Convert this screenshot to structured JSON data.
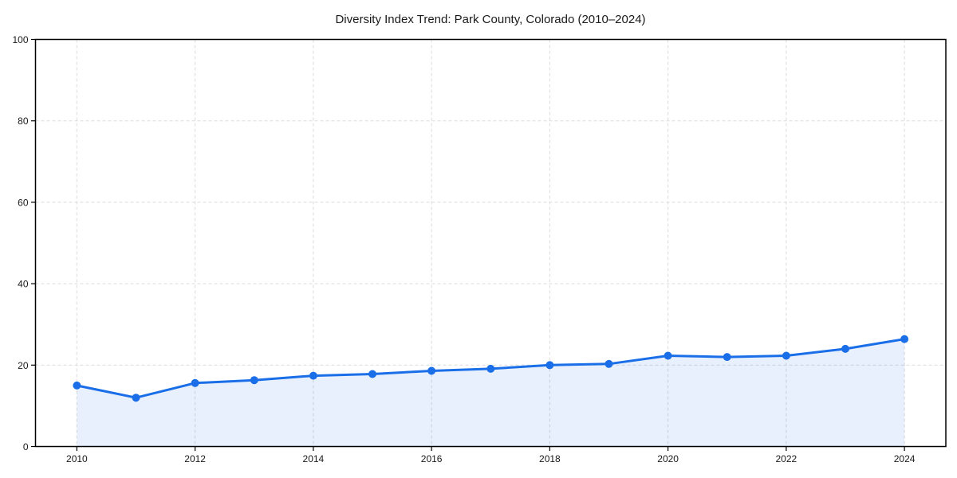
{
  "title": "Diversity Index Trend: Park County, Colorado (2010–2024)",
  "colors": {
    "line": "#1a6fe8",
    "fill": "#1a6fe8",
    "fill_opacity": 0.1,
    "grid": "#dbdbdb",
    "spine": "#000000",
    "text": "#1a1a1a"
  },
  "chart_data": {
    "type": "area",
    "title": "Diversity Index Trend: Park County, Colorado (2010–2024)",
    "x": [
      2010,
      2011,
      2012,
      2013,
      2014,
      2015,
      2016,
      2017,
      2018,
      2019,
      2020,
      2021,
      2022,
      2023,
      2024
    ],
    "values": [
      15.0,
      12.0,
      15.6,
      16.3,
      17.4,
      17.8,
      18.6,
      19.1,
      20.0,
      20.3,
      22.3,
      22.0,
      22.3,
      24.0,
      26.4
    ],
    "series_name": "Diversity Index",
    "xlabel": "",
    "ylabel": "",
    "xlim": [
      2009.3,
      2024.7
    ],
    "ylim": [
      0,
      100
    ],
    "xticks": [
      2010,
      2012,
      2014,
      2016,
      2018,
      2020,
      2022,
      2024
    ],
    "yticks": [
      0,
      20,
      40,
      60,
      80,
      100
    ],
    "grid": true,
    "grid_style": "dashed",
    "legend": "none",
    "marker": "circle",
    "line_width": 3,
    "marker_radius": 5
  }
}
